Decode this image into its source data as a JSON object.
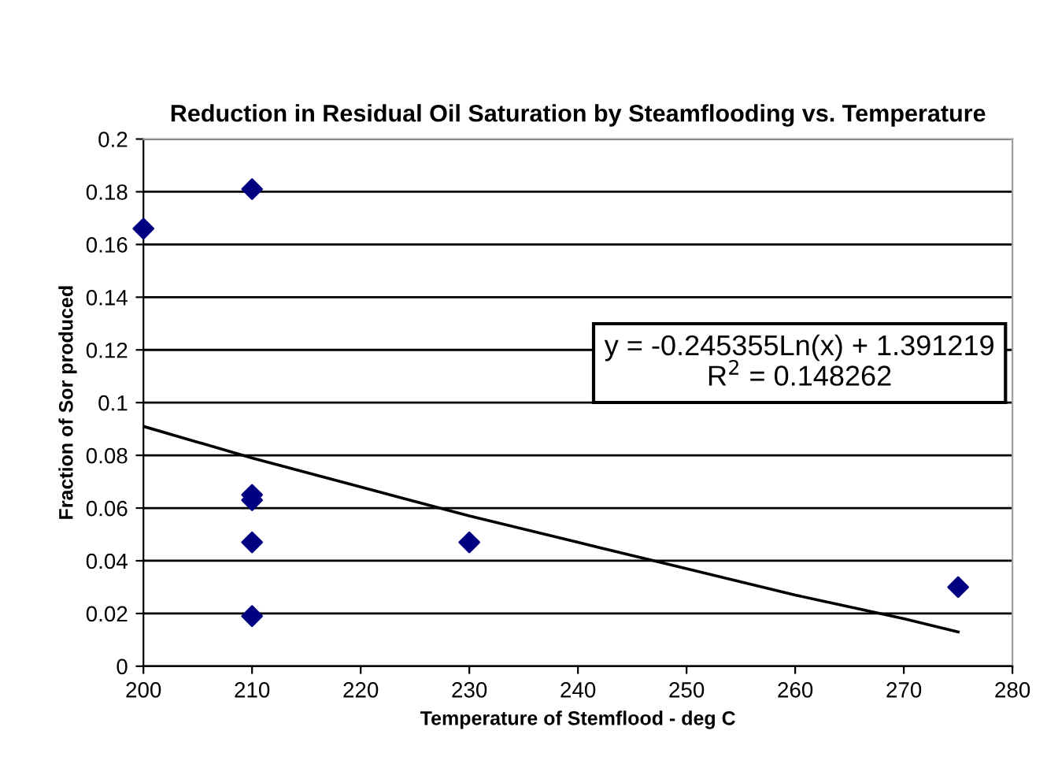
{
  "chart_data": {
    "type": "scatter",
    "title": "Reduction in Residual Oil Saturation by Steamflooding vs. Temperature",
    "xlabel": "Temperature of Stemflood - deg C",
    "ylabel": "Fraction of Sor produced",
    "series": [
      {
        "color": "#000080",
        "marker": "diamond",
        "x": [
          200,
          210,
          210,
          210,
          210,
          210,
          230,
          275
        ],
        "values": [
          0.166,
          0.181,
          0.065,
          0.063,
          0.047,
          0.019,
          0.047,
          0.03
        ]
      },
      {
        "type": "line",
        "color": "#000000",
        "marker": "none",
        "x": [
          200,
          210,
          220,
          230,
          240,
          250,
          260,
          270,
          275
        ],
        "values": [
          0.091,
          0.079,
          0.068,
          0.057,
          0.047,
          0.037,
          0.027,
          0.018,
          0.013
        ]
      }
    ],
    "annotations": [
      "y = -0.245355Ln(x) + 1.391219\nR$^{2}$ = 0.148262"
    ],
    "xlim": [
      200,
      280
    ],
    "xticks": [
      200,
      210,
      220,
      230,
      240,
      250,
      260,
      270,
      280
    ],
    "ylim": [
      0,
      0.2
    ],
    "yticks": [
      0,
      0.02,
      0.04,
      0.06,
      0.08,
      0.1,
      0.12,
      0.14,
      0.16,
      0.18,
      0.2
    ],
    "grid": "y",
    "legend": false
  }
}
